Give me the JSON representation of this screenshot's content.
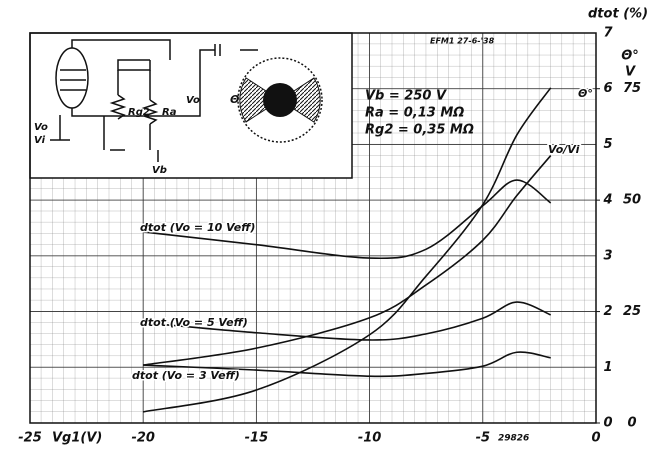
{
  "chart_data": {
    "type": "line",
    "x_label": "Vg1(V)",
    "y_label": "dtot (%)",
    "y2_labels": [
      "Θ°",
      "V"
    ],
    "annotations": [
      "EFM1  27-6-'38",
      "29826"
    ],
    "parameters": [
      "Vb = 250 V",
      "Ra = 0,13 MΩ",
      "Rg2 = 0,35 MΩ"
    ],
    "inset_labels": [
      "Rg2",
      "Ra",
      "Vo",
      "Vo",
      "Vi",
      "Vb",
      "Θ"
    ],
    "x": [
      -20,
      -15,
      -10,
      -7.5,
      -5,
      -3.5,
      -2
    ],
    "series": [
      {
        "name": "dtot (Vo = 10 Veff)",
        "color": "#111111",
        "values": [
          3.43,
          3.2,
          2.96,
          3.12,
          3.9,
          4.36,
          3.95
        ]
      },
      {
        "name": "dtot (Vo = 5 Veff)",
        "color": "#111111",
        "values": [
          1.8,
          1.62,
          1.49,
          1.6,
          1.88,
          2.17,
          1.94
        ]
      },
      {
        "name": "dtot (Vo = 3 Veff)",
        "color": "#111111",
        "values": [
          1.04,
          0.95,
          0.84,
          0.89,
          1.02,
          1.27,
          1.17
        ]
      },
      {
        "name": "Θ°",
        "color": "#111111",
        "axis": "y2",
        "values": [
          2.5,
          7.4,
          19.8,
          33,
          49,
          64.6,
          75.2
        ]
      },
      {
        "name": "Vo/Vi",
        "color": "#111111",
        "axis": "y2",
        "values": [
          13,
          16.8,
          23.6,
          31,
          41,
          51,
          60
        ]
      }
    ],
    "xlim": [
      -25,
      0
    ],
    "xticks": [
      -25,
      -20,
      -15,
      -10,
      -5,
      0
    ],
    "ylim": [
      0,
      7
    ],
    "yticks": [
      0,
      1,
      2,
      3,
      4,
      5,
      6,
      7
    ],
    "y2lim": [
      0,
      87.5
    ],
    "y2ticks": [
      0,
      25,
      50,
      75
    ],
    "grid": true
  }
}
